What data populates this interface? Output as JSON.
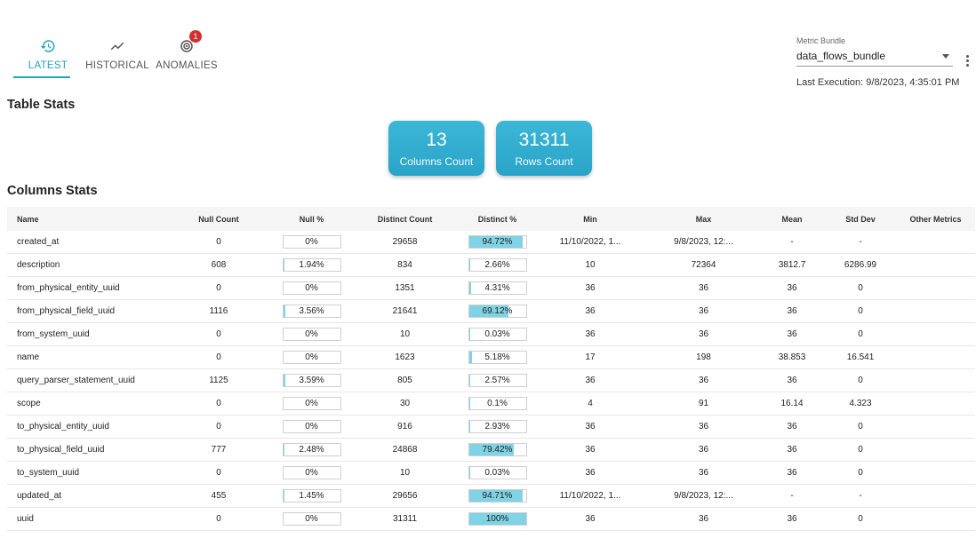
{
  "tabs": [
    {
      "label": "LATEST",
      "icon": "history-icon",
      "active": true
    },
    {
      "label": "HISTORICAL",
      "icon": "trend-line-icon",
      "active": false
    },
    {
      "label": "ANOMALIES",
      "icon": "radar-icon",
      "active": false,
      "badge": "1"
    }
  ],
  "metric_bundle": {
    "label": "Metric Bundle",
    "value": "data_flows_bundle"
  },
  "last_execution": "Last Execution: 9/8/2023, 4:35:01 PM",
  "table_stats": {
    "title": "Table Stats",
    "cards": [
      {
        "value": "13",
        "label": "Columns Count"
      },
      {
        "value": "31311",
        "label": "Rows Count"
      }
    ]
  },
  "columns_stats": {
    "title": "Columns Stats",
    "headers": [
      "Name",
      "Null Count",
      "Null %",
      "Distinct Count",
      "Distinct %",
      "Min",
      "Max",
      "Mean",
      "Std Dev",
      "Other Metrics"
    ],
    "rows": [
      {
        "name": "created_at",
        "null_count": "0",
        "null_pct": "0%",
        "null_frac": 0,
        "distinct_count": "29658",
        "distinct_pct": "94.72%",
        "distinct_frac": 0.9472,
        "min": "11/10/2022, 1...",
        "max": "9/8/2023, 12:...",
        "mean": "-",
        "std": "-"
      },
      {
        "name": "description",
        "null_count": "608",
        "null_pct": "1.94%",
        "null_frac": 0.0194,
        "distinct_count": "834",
        "distinct_pct": "2.66%",
        "distinct_frac": 0.0266,
        "min": "10",
        "max": "72364",
        "mean": "3812.7",
        "std": "6286.99"
      },
      {
        "name": "from_physical_entity_uuid",
        "null_count": "0",
        "null_pct": "0%",
        "null_frac": 0,
        "distinct_count": "1351",
        "distinct_pct": "4.31%",
        "distinct_frac": 0.0431,
        "min": "36",
        "max": "36",
        "mean": "36",
        "std": "0"
      },
      {
        "name": "from_physical_field_uuid",
        "null_count": "1116",
        "null_pct": "3.56%",
        "null_frac": 0.0356,
        "distinct_count": "21641",
        "distinct_pct": "69.12%",
        "distinct_frac": 0.6912,
        "min": "36",
        "max": "36",
        "mean": "36",
        "std": "0"
      },
      {
        "name": "from_system_uuid",
        "null_count": "0",
        "null_pct": "0%",
        "null_frac": 0,
        "distinct_count": "10",
        "distinct_pct": "0.03%",
        "distinct_frac": 0.0003,
        "min": "36",
        "max": "36",
        "mean": "36",
        "std": "0"
      },
      {
        "name": "name",
        "null_count": "0",
        "null_pct": "0%",
        "null_frac": 0,
        "distinct_count": "1623",
        "distinct_pct": "5.18%",
        "distinct_frac": 0.0518,
        "min": "17",
        "max": "198",
        "mean": "38.853",
        "std": "16.541"
      },
      {
        "name": "query_parser_statement_uuid",
        "null_count": "1125",
        "null_pct": "3.59%",
        "null_frac": 0.0359,
        "distinct_count": "805",
        "distinct_pct": "2.57%",
        "distinct_frac": 0.0257,
        "min": "36",
        "max": "36",
        "mean": "36",
        "std": "0"
      },
      {
        "name": "scope",
        "null_count": "0",
        "null_pct": "0%",
        "null_frac": 0,
        "distinct_count": "30",
        "distinct_pct": "0.1%",
        "distinct_frac": 0.001,
        "min": "4",
        "max": "91",
        "mean": "16.14",
        "std": "4.323"
      },
      {
        "name": "to_physical_entity_uuid",
        "null_count": "0",
        "null_pct": "0%",
        "null_frac": 0,
        "distinct_count": "916",
        "distinct_pct": "2.93%",
        "distinct_frac": 0.0293,
        "min": "36",
        "max": "36",
        "mean": "36",
        "std": "0"
      },
      {
        "name": "to_physical_field_uuid",
        "null_count": "777",
        "null_pct": "2.48%",
        "null_frac": 0.0248,
        "distinct_count": "24868",
        "distinct_pct": "79.42%",
        "distinct_frac": 0.7942,
        "min": "36",
        "max": "36",
        "mean": "36",
        "std": "0"
      },
      {
        "name": "to_system_uuid",
        "null_count": "0",
        "null_pct": "0%",
        "null_frac": 0,
        "distinct_count": "10",
        "distinct_pct": "0.03%",
        "distinct_frac": 0.0003,
        "min": "36",
        "max": "36",
        "mean": "36",
        "std": "0"
      },
      {
        "name": "updated_at",
        "null_count": "455",
        "null_pct": "1.45%",
        "null_frac": 0.0145,
        "distinct_count": "29656",
        "distinct_pct": "94.71%",
        "distinct_frac": 0.9471,
        "min": "11/10/2022, 1...",
        "max": "9/8/2023, 12:...",
        "mean": "-",
        "std": "-"
      },
      {
        "name": "uuid",
        "null_count": "0",
        "null_pct": "0%",
        "null_frac": 0,
        "distinct_count": "31311",
        "distinct_pct": "100%",
        "distinct_frac": 1.0,
        "min": "36",
        "max": "36",
        "mean": "36",
        "std": "0"
      }
    ]
  },
  "colors": {
    "accent": "#26a0c4",
    "card": "#2aa3c8",
    "bar_fill": "#7fd3e4",
    "badge": "#d32f2f"
  }
}
